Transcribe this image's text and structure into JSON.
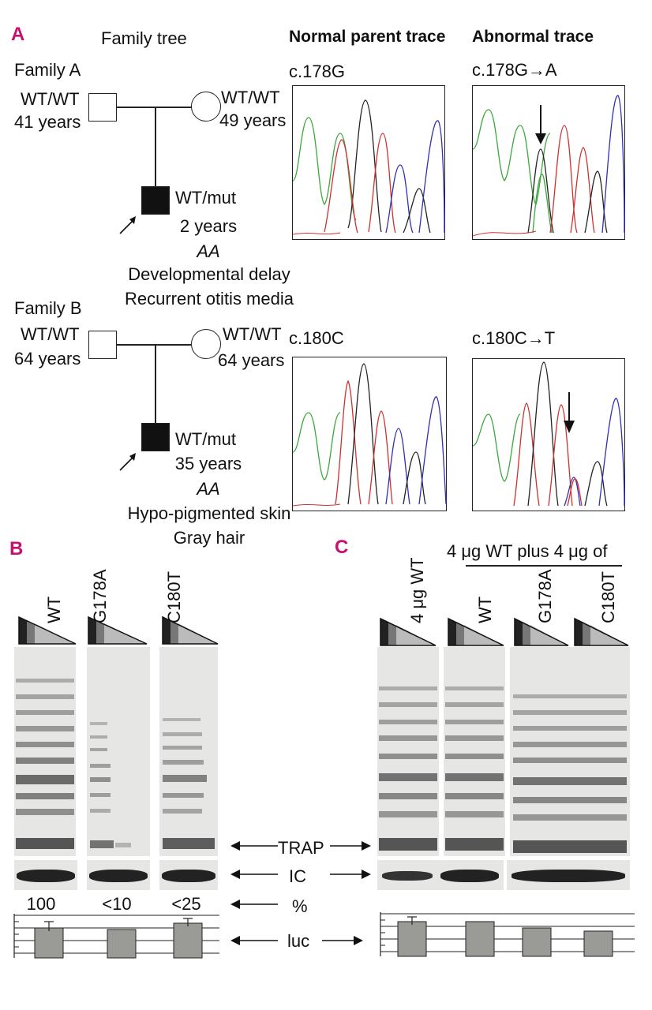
{
  "panel_a": {
    "letter": "A",
    "family_tree_title": "Family tree",
    "normal_trace_header": "Normal parent trace",
    "abnormal_trace_header": "Abnormal trace",
    "family_a": {
      "label": "Family A",
      "father_genotype": "WT/WT",
      "father_age": "41 years",
      "mother_genotype": "WT/WT",
      "mother_age": "49 years",
      "child_genotype": "WT/mut",
      "child_age": "2 years",
      "child_aa": "AA",
      "child_trait_1": "Developmental delay",
      "child_trait_2": "Recurrent otitis media",
      "normal_trace_label": "c.178G",
      "abnormal_trace_label": "c.178G→A"
    },
    "family_b": {
      "label": "Family B",
      "father_genotype": "WT/WT",
      "father_age": "64 years",
      "mother_genotype": "WT/WT",
      "mother_age": "64 years",
      "child_genotype": "WT/mut",
      "child_age": "35 years",
      "child_aa": "AA",
      "child_trait_1": "Hypo-pigmented skin",
      "child_trait_2": "Gray hair",
      "normal_trace_label": "c.180C",
      "abnormal_trace_label": "c.180C→T"
    }
  },
  "panel_b": {
    "letter": "B",
    "lanes": [
      "WT",
      "G178A",
      "C180T"
    ],
    "percent_values": [
      "100",
      "<10",
      "<25"
    ]
  },
  "panel_c": {
    "letter": "C",
    "bracket_label": "4 μg WT plus 4 μg of",
    "lanes": [
      "4 μg WT",
      "WT",
      "G178A",
      "C180T"
    ]
  },
  "middle_labels": {
    "trap": "TRAP",
    "ic": "IC",
    "percent": "%",
    "luc": "luc"
  },
  "colors": {
    "panel_letter": "#c8106e",
    "trace_green": "#3aa83a",
    "trace_black": "#222222",
    "trace_red": "#d03030",
    "trace_blue": "#3030b0"
  }
}
